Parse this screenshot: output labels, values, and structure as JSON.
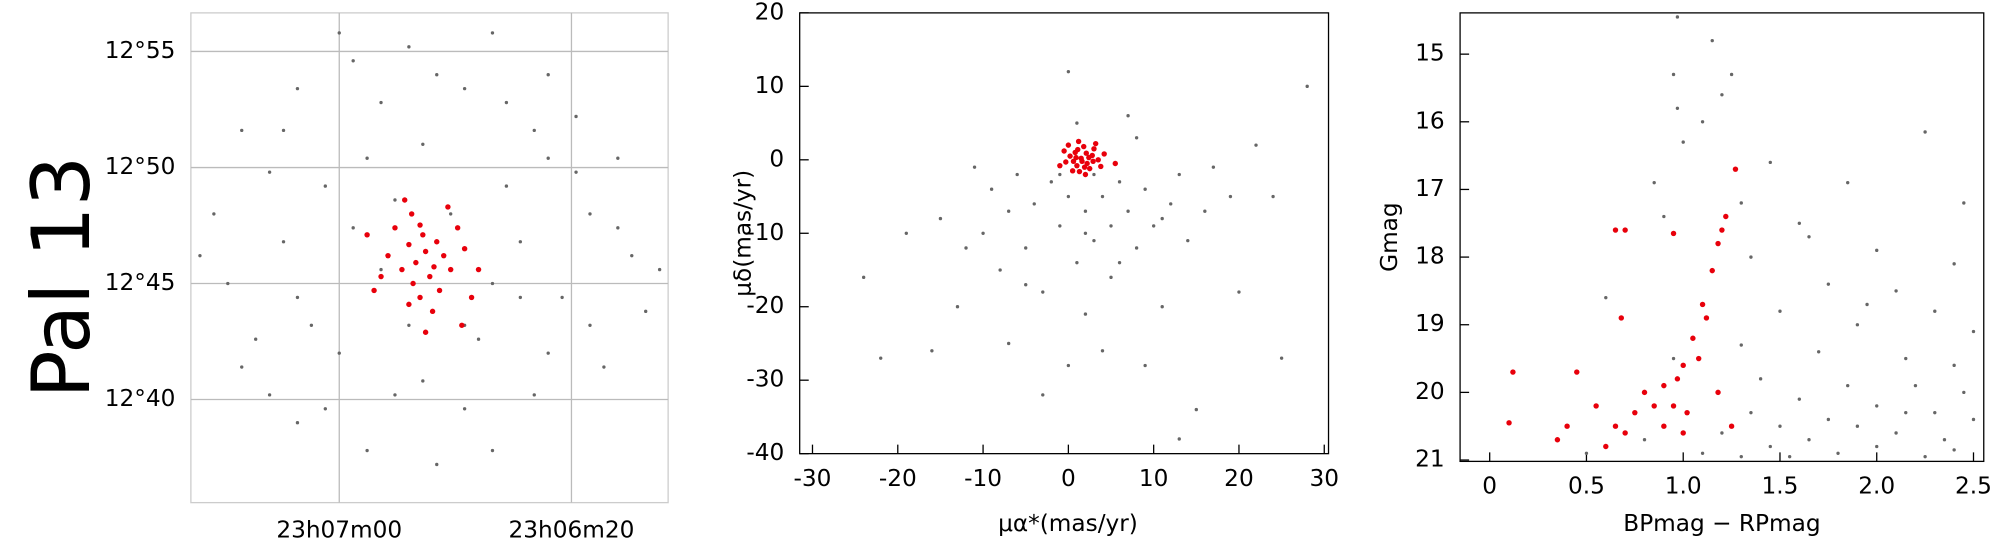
{
  "label": "Pal 13",
  "chart_data": [
    {
      "type": "scatter",
      "grid": true,
      "frame": false,
      "xlim": [
        346.8565,
        346.5139
      ],
      "ylim": [
        12.5926,
        12.9444
      ],
      "xticks": [
        {
          "value": 346.75,
          "label": "23h07m00"
        },
        {
          "value": 346.5833,
          "label": "23h06m20"
        }
      ],
      "yticks": [
        {
          "value": 12.9167,
          "label": "12°55"
        },
        {
          "value": 12.8333,
          "label": "12°50"
        },
        {
          "value": 12.75,
          "label": "12°45"
        },
        {
          "value": 12.6667,
          "label": "12°40"
        }
      ],
      "series": [
        {
          "color": "#666666",
          "x": [
            346.75,
            346.7,
            346.64,
            346.6,
            346.78,
            346.82,
            346.72,
            346.66,
            346.58,
            346.55,
            346.8,
            346.76,
            346.69,
            346.63,
            346.57,
            346.84,
            346.79,
            346.74,
            346.62,
            346.54,
            346.83,
            346.78,
            346.72,
            346.64,
            346.59,
            346.53,
            346.81,
            346.75,
            346.7,
            346.65,
            346.6,
            346.56,
            346.8,
            346.76,
            346.71,
            346.66,
            346.61,
            346.73,
            346.68,
            346.64,
            346.77,
            346.67,
            346.58,
            346.73,
            346.61,
            346.85,
            346.52,
            346.69,
            346.62,
            346.78,
            346.57,
            346.74,
            346.68,
            346.63,
            346.82,
            346.55,
            346.6,
            346.71,
            346.66,
            346.79
          ],
          "values": [
            12.93,
            12.92,
            12.93,
            12.9,
            12.89,
            12.86,
            12.88,
            12.89,
            12.87,
            12.84,
            12.83,
            12.82,
            12.85,
            12.82,
            12.8,
            12.8,
            12.78,
            12.79,
            12.78,
            12.77,
            12.75,
            12.74,
            12.76,
            12.75,
            12.74,
            12.73,
            12.71,
            12.7,
            12.72,
            12.71,
            12.7,
            12.69,
            12.67,
            12.66,
            12.67,
            12.66,
            12.67,
            12.63,
            12.62,
            12.63,
            12.72,
            12.8,
            12.83,
            12.84,
            12.86,
            12.77,
            12.76,
            12.68,
            12.74,
            12.65,
            12.72,
            12.91,
            12.9,
            12.88,
            12.69,
            12.79,
            12.84,
            12.81,
            12.72,
            12.86
          ]
        },
        {
          "color": "#e8000b",
          "x": [
            346.688,
            346.68,
            346.695,
            346.7,
            346.675,
            346.69,
            346.705,
            346.67,
            346.685,
            346.71,
            346.665,
            346.698,
            346.678,
            346.715,
            346.66,
            346.692,
            346.72,
            346.65,
            346.703,
            346.672,
            346.725,
            346.655,
            346.683,
            346.7,
            346.73,
            346.662,
            346.688,
            346.692,
            346.682,
            346.697
          ],
          "values": [
            12.773,
            12.78,
            12.765,
            12.778,
            12.77,
            12.785,
            12.76,
            12.76,
            12.755,
            12.79,
            12.79,
            12.8,
            12.745,
            12.77,
            12.775,
            12.74,
            12.755,
            12.76,
            12.81,
            12.805,
            12.745,
            12.74,
            12.73,
            12.735,
            12.785,
            12.72,
            12.715,
            12.792,
            12.762,
            12.75
          ]
        }
      ]
    },
    {
      "type": "scatter",
      "grid": false,
      "frame": true,
      "xlabel": "μα*(mas/yr)",
      "ylabel": "μδ(mas/yr)",
      "xlim": [
        -31.5,
        30.5
      ],
      "ylim": [
        -40,
        20
      ],
      "xticks": [
        -30,
        -20,
        -10,
        0,
        10,
        20,
        30
      ],
      "yticks": [
        -40,
        -30,
        -20,
        -10,
        0,
        10,
        20
      ],
      "series": [
        {
          "color": "#666666",
          "x": [
            -24,
            -22,
            -19,
            -16,
            -15,
            -13,
            -12,
            -10,
            -9,
            -8,
            -7,
            -6,
            -5,
            -4,
            -3,
            -2,
            -1,
            0,
            0,
            1,
            2,
            2,
            3,
            3,
            4,
            5,
            5,
            6,
            7,
            8,
            8,
            9,
            10,
            11,
            12,
            13,
            14,
            15,
            16,
            17,
            19,
            20,
            22,
            24,
            25,
            28,
            -3,
            -11,
            4,
            1,
            -7,
            13,
            6,
            -1,
            2,
            9,
            -5,
            11,
            0,
            7
          ],
          "values": [
            -16,
            -27,
            -10,
            -26,
            -8,
            -20,
            -12,
            -10,
            -4,
            -15,
            -7,
            -2,
            -12,
            -6,
            -18,
            -3,
            -9,
            -5,
            12,
            -14,
            -7,
            -21,
            -2,
            -11,
            -5,
            -9,
            -16,
            -3,
            -7,
            -12,
            3,
            -4,
            -9,
            -20,
            -6,
            -2,
            -11,
            -34,
            -7,
            -1,
            -5,
            -18,
            2,
            -5,
            -27,
            10,
            -32,
            -1,
            -26,
            5,
            -25,
            -38,
            -14,
            -2,
            -10,
            -28,
            -17,
            -8,
            -28,
            6
          ]
        },
        {
          "color": "#e8000b",
          "x": [
            1.5,
            0.8,
            2.2,
            1.0,
            2.8,
            0.2,
            1.8,
            2.5,
            0.5,
            3.5,
            -0.3,
            1.2,
            3.0,
            -0.5,
            2.0,
            4.2,
            1.6,
            0.9,
            2.4,
            1.3,
            -1.0,
            3.8,
            0.0,
            2.9,
            5.5,
            1.1,
            2.1,
            0.6,
            1.9,
            3.2
          ],
          "values": [
            0.2,
            1.0,
            -0.5,
            -0.8,
            0.6,
            0.5,
            1.8,
            -1.2,
            -1.5,
            0.0,
            -0.3,
            2.5,
            1.5,
            1.2,
            -2.0,
            0.8,
            -0.2,
            0.3,
            0.3,
            -1.6,
            -0.8,
            -0.9,
            2.0,
            -0.2,
            -0.5,
            1.4,
            0.9,
            -0.2,
            -1.0,
            2.2
          ]
        }
      ]
    },
    {
      "type": "scatter",
      "grid": false,
      "frame": true,
      "xlabel": "BPmag − RPmag",
      "ylabel": "Gmag",
      "xlim": [
        -0.153,
        2.553
      ],
      "ylim": [
        21.02,
        14.39
      ],
      "xticks": [
        0,
        0.5,
        {
          "value": 1,
          "label": "1.0"
        },
        1.5,
        {
          "value": 2,
          "label": "2.0"
        },
        2.5
      ],
      "yticks": [
        15,
        16,
        17,
        18,
        19,
        20,
        21
      ],
      "series": [
        {
          "color": "#666666",
          "x": [
            0.97,
            1.15,
            0.95,
            1.25,
            1.2,
            0.97,
            1.1,
            1.0,
            2.25,
            1.45,
            1.85,
            0.85,
            1.3,
            0.9,
            1.6,
            2.45,
            1.65,
            2.0,
            1.35,
            2.4,
            1.75,
            2.1,
            0.6,
            1.5,
            2.3,
            1.9,
            2.5,
            1.3,
            1.7,
            2.15,
            0.95,
            2.4,
            1.4,
            1.85,
            2.2,
            2.45,
            1.6,
            2.0,
            1.35,
            2.3,
            1.75,
            2.5,
            1.5,
            1.9,
            2.1,
            1.2,
            2.35,
            1.65,
            0.8,
            1.45,
            2.0,
            2.4,
            1.1,
            1.8,
            2.25,
            0.5,
            1.55,
            1.3,
            2.15,
            1.95
          ],
          "values": [
            14.45,
            14.8,
            15.3,
            15.3,
            15.6,
            15.8,
            16.0,
            16.3,
            16.15,
            16.6,
            16.9,
            16.9,
            17.2,
            17.4,
            17.5,
            17.2,
            17.7,
            17.9,
            18.0,
            18.1,
            18.4,
            18.5,
            18.6,
            18.8,
            18.8,
            19.0,
            19.1,
            19.3,
            19.4,
            19.5,
            19.5,
            19.6,
            19.8,
            19.9,
            19.9,
            20.0,
            20.1,
            20.2,
            20.3,
            20.3,
            20.4,
            20.4,
            20.5,
            20.5,
            20.6,
            20.6,
            20.7,
            20.7,
            20.7,
            20.8,
            20.8,
            20.85,
            20.9,
            20.9,
            20.95,
            20.9,
            20.95,
            20.95,
            20.3,
            18.7
          ]
        },
        {
          "color": "#e8000b",
          "x": [
            1.27,
            1.22,
            1.2,
            1.18,
            1.15,
            1.1,
            0.65,
            0.7,
            0.95,
            1.12,
            1.05,
            1.08,
            1.0,
            0.97,
            0.9,
            0.8,
            0.85,
            0.75,
            0.95,
            1.02,
            0.65,
            0.7,
            0.9,
            1.0,
            0.55,
            0.4,
            0.35,
            0.1,
            0.12,
            0.6,
            0.68,
            1.25,
            1.18,
            0.45
          ],
          "values": [
            16.7,
            17.4,
            17.6,
            17.8,
            18.2,
            18.7,
            17.6,
            17.6,
            17.65,
            18.9,
            19.2,
            19.5,
            19.6,
            19.8,
            19.9,
            20.0,
            20.2,
            20.3,
            20.2,
            20.3,
            20.5,
            20.6,
            20.5,
            20.6,
            20.2,
            20.5,
            20.7,
            20.45,
            19.7,
            20.8,
            18.9,
            20.5,
            20.0,
            19.7
          ]
        }
      ]
    }
  ]
}
